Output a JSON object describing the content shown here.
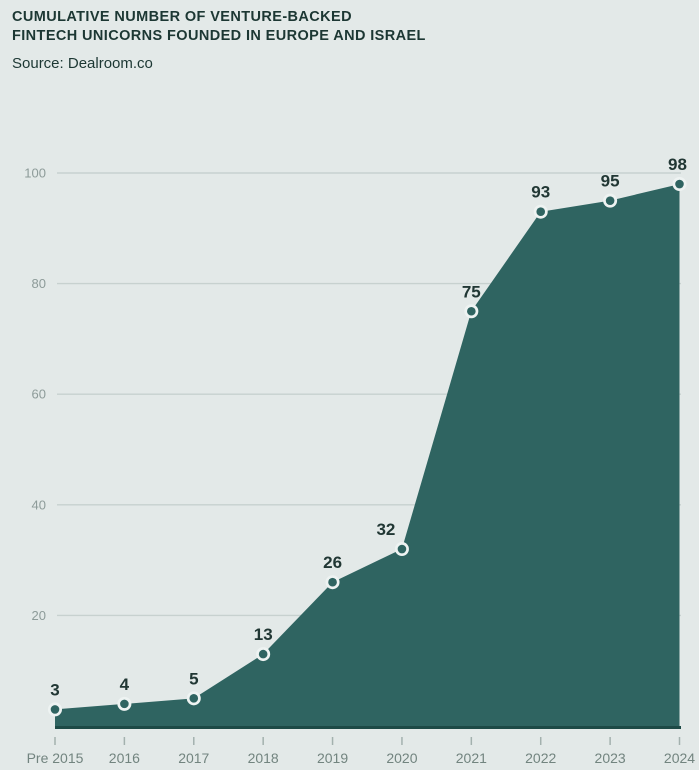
{
  "header": {
    "title_lines": [
      "Cumulative number of venture-backed",
      "fintech unicorns founded in Europe and Israel"
    ],
    "source": "Source: Dealroom.co"
  },
  "chart_data": {
    "type": "area",
    "title": "Cumulative number of venture-backed fintech unicorns founded in Europe and Israel",
    "subtitle": "Source: Dealroom.co",
    "categories": [
      "Pre 2015",
      "2016",
      "2017",
      "2018",
      "2019",
      "2020",
      "2021",
      "2022",
      "2023",
      "2024"
    ],
    "values": [
      3,
      4,
      5,
      13,
      26,
      32,
      75,
      93,
      95,
      98
    ],
    "value_labels": [
      "3",
      "4",
      "5",
      "13",
      "26",
      "32",
      "75",
      "93",
      "95",
      "98"
    ],
    "xlabel": "",
    "ylabel": "",
    "ylim": [
      0,
      105
    ],
    "yticks": [
      20,
      40,
      60,
      80,
      100
    ],
    "grid": true,
    "legend": "none",
    "colors": {
      "background": "#e3e9e8",
      "area": "#2f6461",
      "marker_ring": "#eef3f2",
      "gridline": "#c7d1cf",
      "tick": "#a3b1ae",
      "axis_label": "#8d9b99",
      "x_label": "#72847f",
      "value_label": "#213734",
      "baseline": "#1d4a46",
      "title": "#1c3733"
    }
  }
}
